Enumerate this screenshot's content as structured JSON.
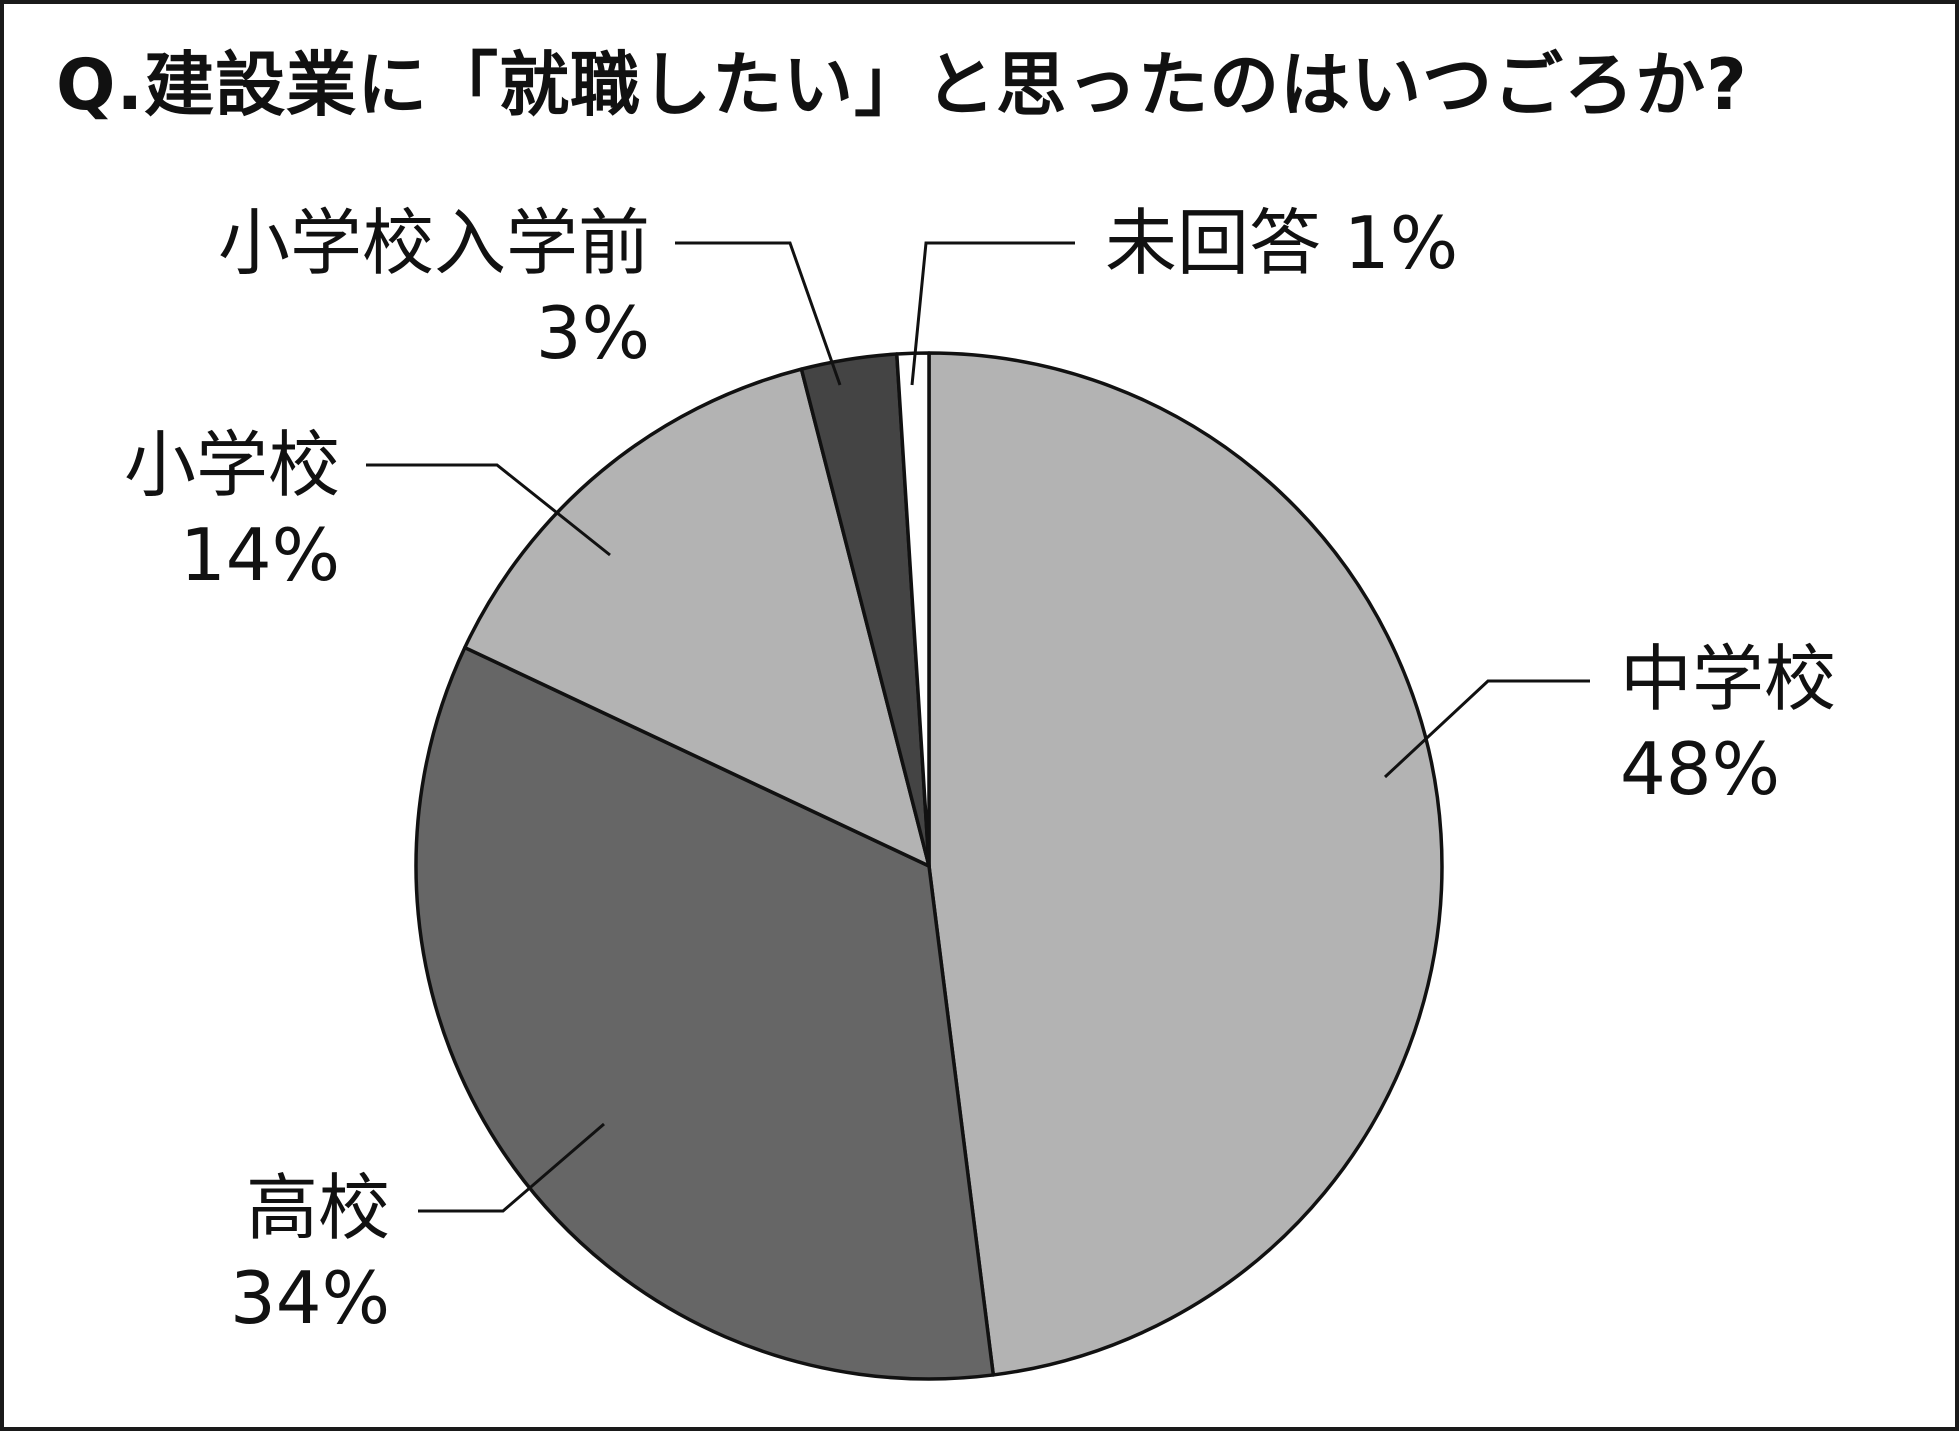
{
  "chart_data": {
    "type": "pie",
    "title": "Q.建設業に「就職したい」と思ったのはいつごろか?",
    "start_angle_deg": 0,
    "direction": "clockwise",
    "slices": [
      {
        "label": "中学校",
        "value": 48,
        "value_label": "48%",
        "color": "#b3b3b3"
      },
      {
        "label": "高校",
        "value": 34,
        "value_label": "34%",
        "color": "#666666"
      },
      {
        "label": "小学校",
        "value": 14,
        "value_label": "14%",
        "color": "#b3b3b3"
      },
      {
        "label": "小学校入学前",
        "value": 3,
        "value_label": "3%",
        "color": "#444444"
      },
      {
        "label": "未回答",
        "value": 1,
        "value_label": "1%",
        "color": "#ffffff"
      }
    ],
    "legend": "none"
  }
}
